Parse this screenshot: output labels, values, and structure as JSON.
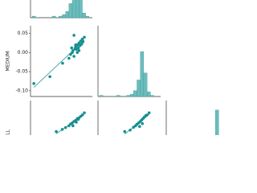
{
  "chart_data": [
    {
      "type": "hist",
      "bins": [
        -0.11,
        -0.1,
        -0.09,
        -0.08,
        -0.07,
        -0.06,
        -0.05,
        -0.04,
        -0.03,
        -0.02,
        -0.01,
        0.0,
        0.01,
        0.02,
        0.03,
        0.04,
        0.05,
        0.06,
        0.07
      ],
      "counts": [
        1,
        0,
        0,
        0,
        0,
        0,
        1,
        0,
        1,
        2,
        4,
        9,
        30,
        40,
        12,
        3,
        1,
        0
      ],
      "xlim": [
        -0.115,
        0.07
      ],
      "ylim": [
        0,
        42
      ],
      "color": "#6cbcbc"
    },
    {
      "type": "scatter",
      "ylabel": "MEDIUM",
      "x": [
        -0.105,
        -0.057,
        -0.019,
        0.0,
        0.005,
        0.01,
        0.012,
        0.015,
        0.018,
        0.02,
        0.022,
        0.025,
        0.028,
        0.03,
        0.033,
        0.035,
        0.038,
        0.04,
        0.042,
        0.046,
        0.015,
        0.025,
        0.008,
        0.03,
        0.02
      ],
      "y": [
        -0.081,
        -0.063,
        -0.028,
        -0.015,
        -0.005,
        0.0,
        0.005,
        -0.01,
        0.01,
        0.015,
        0.008,
        0.02,
        0.012,
        0.025,
        0.018,
        0.03,
        0.022,
        0.035,
        0.028,
        0.04,
        0.045,
        0.0,
        0.012,
        0.005,
        0.02
      ],
      "xlim": [
        -0.115,
        0.07
      ],
      "ylim": [
        -0.115,
        0.07
      ],
      "yticks": [
        {
          "value": 0.05,
          "label": "0.05"
        },
        {
          "value": 0.0,
          "label": "0.00"
        },
        {
          "value": -0.05,
          "label": "-0.05"
        },
        {
          "value": -0.1,
          "label": "-0.10"
        }
      ],
      "regression": true,
      "color": "#178f8f"
    },
    {
      "type": "hist",
      "bins": [
        -0.11,
        -0.1,
        -0.09,
        -0.08,
        -0.07,
        -0.06,
        -0.05,
        -0.04,
        -0.03,
        -0.02,
        -0.01,
        0.0,
        0.01,
        0.02,
        0.03,
        0.04,
        0.05,
        0.06,
        0.07
      ],
      "counts": [
        1,
        0,
        0,
        0,
        0,
        1,
        0,
        0,
        1,
        2,
        5,
        14,
        38,
        20,
        4,
        1,
        0,
        0
      ],
      "xlim": [
        -0.115,
        0.07
      ],
      "ylim": [
        0,
        60
      ],
      "color": "#6cbcbc"
    },
    {
      "type": "scatter",
      "ylabel": "ALL",
      "x": [
        -0.038,
        -0.02,
        -0.01,
        0.0,
        0.005,
        0.01,
        0.015,
        0.02,
        0.025,
        0.03,
        0.035,
        0.04,
        0.046,
        0.012,
        0.022,
        0.028
      ],
      "y": [
        -0.016,
        -0.01,
        -0.005,
        0.0,
        0.005,
        0.008,
        0.012,
        0.015,
        0.02,
        0.022,
        0.026,
        0.03,
        0.036,
        0.0,
        0.01,
        0.018
      ],
      "xlim": [
        -0.115,
        0.07
      ],
      "ylim": [
        -0.115,
        0.07
      ],
      "regression": true,
      "color": "#178f8f"
    },
    {
      "type": "scatter",
      "x": [
        -0.036,
        -0.02,
        -0.01,
        -0.004,
        0.0,
        0.005,
        0.01,
        0.014,
        0.018,
        0.022,
        0.026,
        0.03,
        0.036,
        0.008,
        0.016
      ],
      "y": [
        -0.016,
        -0.012,
        -0.004,
        0.0,
        0.004,
        0.008,
        0.012,
        0.016,
        0.02,
        0.024,
        0.028,
        0.03,
        0.036,
        -0.002,
        0.006
      ],
      "xlim": [
        -0.115,
        0.07
      ],
      "ylim": [
        -0.115,
        0.07
      ],
      "regression": true,
      "color": "#178f8f"
    },
    {
      "type": "hist",
      "bins": [
        -0.11,
        -0.1,
        -0.09,
        -0.08,
        -0.07,
        -0.06,
        -0.05,
        -0.04,
        -0.03,
        -0.02,
        -0.01,
        0.0,
        0.01,
        0.02,
        0.03,
        0.04,
        0.05,
        0.06,
        0.07
      ],
      "counts": [
        0,
        0,
        0,
        0,
        0,
        0,
        0,
        0,
        0,
        1,
        1,
        2,
        4,
        9,
        36,
        14,
        3,
        1
      ],
      "xlim": [
        -0.115,
        0.07
      ],
      "ylim": [
        0,
        42
      ],
      "color": "#6cbcbc"
    }
  ]
}
